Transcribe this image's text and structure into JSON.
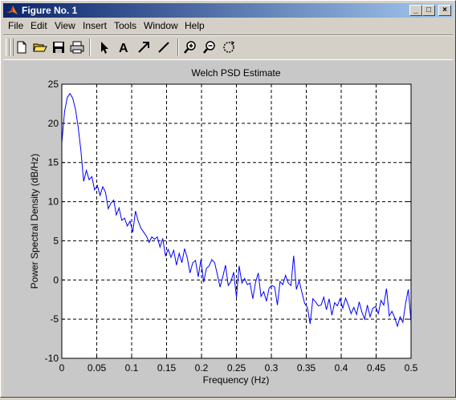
{
  "window": {
    "title": "Figure No. 1",
    "controls": {
      "minimize": "_",
      "maximize": "□",
      "close": "×"
    }
  },
  "menu": [
    "File",
    "Edit",
    "View",
    "Insert",
    "Tools",
    "Window",
    "Help"
  ],
  "toolbar": {
    "icons": [
      "new-file-icon",
      "open-folder-icon",
      "save-icon",
      "print-icon",
      "arrow-select-icon",
      "text-tool-icon",
      "arrow-tool-icon",
      "line-tool-icon",
      "zoom-in-icon",
      "zoom-out-icon",
      "rotate-3d-icon"
    ],
    "text_tool_label": "A"
  },
  "colors": {
    "titlebar": "#0a246a",
    "line": "#0000ff",
    "axes_bg": "#ffffff",
    "figure_bg": "#c8c8c8"
  },
  "chart_data": {
    "type": "line",
    "title": "Welch PSD Estimate",
    "xlabel": "Frequency (Hz)",
    "ylabel": "Power Spectral Density (dB/Hz)",
    "xlim": [
      0,
      0.5
    ],
    "ylim": [
      -10,
      25
    ],
    "grid": true,
    "xticks": [
      0,
      0.05,
      0.1,
      0.15,
      0.2,
      0.25,
      0.3,
      0.35,
      0.4,
      0.45,
      0.5
    ],
    "xtick_labels": [
      "0",
      "0.05",
      "0.1",
      "0.15",
      "0.2",
      "0.25",
      "0.3",
      "0.35",
      "0.4",
      "0.45",
      "0.5"
    ],
    "yticks": [
      -10,
      -5,
      0,
      5,
      10,
      15,
      20,
      25
    ],
    "ytick_labels": [
      "-10",
      "-5",
      "0",
      "5",
      "10",
      "15",
      "20",
      "25"
    ],
    "series": [
      {
        "x": [
          0,
          0.0039,
          0.0078,
          0.0117,
          0.0156,
          0.0195,
          0.0234,
          0.0273,
          0.0313,
          0.0352,
          0.0391,
          0.043,
          0.0469,
          0.0508,
          0.0547,
          0.0586,
          0.0625,
          0.0664,
          0.0703,
          0.0742,
          0.0781,
          0.082,
          0.0859,
          0.0898,
          0.0938,
          0.0977,
          0.1016,
          0.1055,
          0.1094,
          0.1133,
          0.1172,
          0.1211,
          0.125,
          0.1289,
          0.1328,
          0.1367,
          0.1406,
          0.1445,
          0.1484,
          0.1523,
          0.1563,
          0.1602,
          0.1641,
          0.168,
          0.1719,
          0.1758,
          0.1797,
          0.1836,
          0.1875,
          0.1914,
          0.1953,
          0.1992,
          0.2031,
          0.207,
          0.2109,
          0.2148,
          0.2188,
          0.2227,
          0.2266,
          0.2305,
          0.2344,
          0.2383,
          0.2422,
          0.2461,
          0.25,
          0.2539,
          0.2578,
          0.2617,
          0.2656,
          0.2695,
          0.2734,
          0.2773,
          0.2813,
          0.2852,
          0.2891,
          0.293,
          0.2969,
          0.3008,
          0.3047,
          0.3086,
          0.3125,
          0.3164,
          0.3203,
          0.3242,
          0.3281,
          0.332,
          0.3359,
          0.3398,
          0.3438,
          0.3477,
          0.3516,
          0.3555,
          0.3594,
          0.3633,
          0.3672,
          0.3711,
          0.375,
          0.3789,
          0.3828,
          0.3867,
          0.3906,
          0.3945,
          0.3984,
          0.4023,
          0.4063,
          0.4102,
          0.4141,
          0.418,
          0.4219,
          0.4258,
          0.4297,
          0.4336,
          0.4375,
          0.4414,
          0.4453,
          0.4492,
          0.4531,
          0.457,
          0.4609,
          0.4648,
          0.4688,
          0.4727,
          0.4766,
          0.4805,
          0.4844,
          0.4883,
          0.4922,
          0.4961,
          0.5
        ],
        "y": [
          17.5,
          21.5,
          23.3,
          23.8,
          23.2,
          21.8,
          19.5,
          16.5,
          12.6,
          14.0,
          12.8,
          13.2,
          11.5,
          12.1,
          10.8,
          11.9,
          11.2,
          9.1,
          9.8,
          10.2,
          8.3,
          9.2,
          7.6,
          7.9,
          6.9,
          7.5,
          6.1,
          8.8,
          7.5,
          6.6,
          6.1,
          5.6,
          4.8,
          5.5,
          5.2,
          5.5,
          4.2,
          5.3,
          3.1,
          3.9,
          2.9,
          3.8,
          1.9,
          3.4,
          2.2,
          4.0,
          2.8,
          0.9,
          2.2,
          2.5,
          0.4,
          2.6,
          -0.3,
          1.5,
          1.8,
          2.6,
          2.2,
          0.7,
          -0.9,
          0.4,
          1.9,
          -0.7,
          -0.2,
          1.0,
          -2.2,
          1.8,
          -0.4,
          0.2,
          -0.6,
          -0.4,
          -2.4,
          -0.3,
          0.9,
          -2.1,
          -1.5,
          -2.7,
          -1.0,
          -0.7,
          -0.9,
          -3.2,
          -0.2,
          -0.6,
          0.6,
          -0.4,
          -0.7,
          3.1,
          -1.2,
          -0.1,
          -1.6,
          -3.0,
          -3.5,
          -5.6,
          -2.4,
          -2.8,
          -3.3,
          -3.2,
          -2.2,
          -3.8,
          -2.4,
          -4.5,
          -2.9,
          -3.3,
          -2.4,
          -3.6,
          -2.3,
          -3.2,
          -4.3,
          -3.5,
          -4.4,
          -2.8,
          -4.1,
          -5.0,
          -3.2,
          -4.7,
          -3.6,
          -3.4,
          -4.3,
          -2.6,
          -3.2,
          -1.1,
          -4.6,
          -4.0,
          -4.8,
          -5.9,
          -4.7,
          -5.4,
          -3.0,
          -1.2,
          -5.3
        ]
      }
    ]
  }
}
